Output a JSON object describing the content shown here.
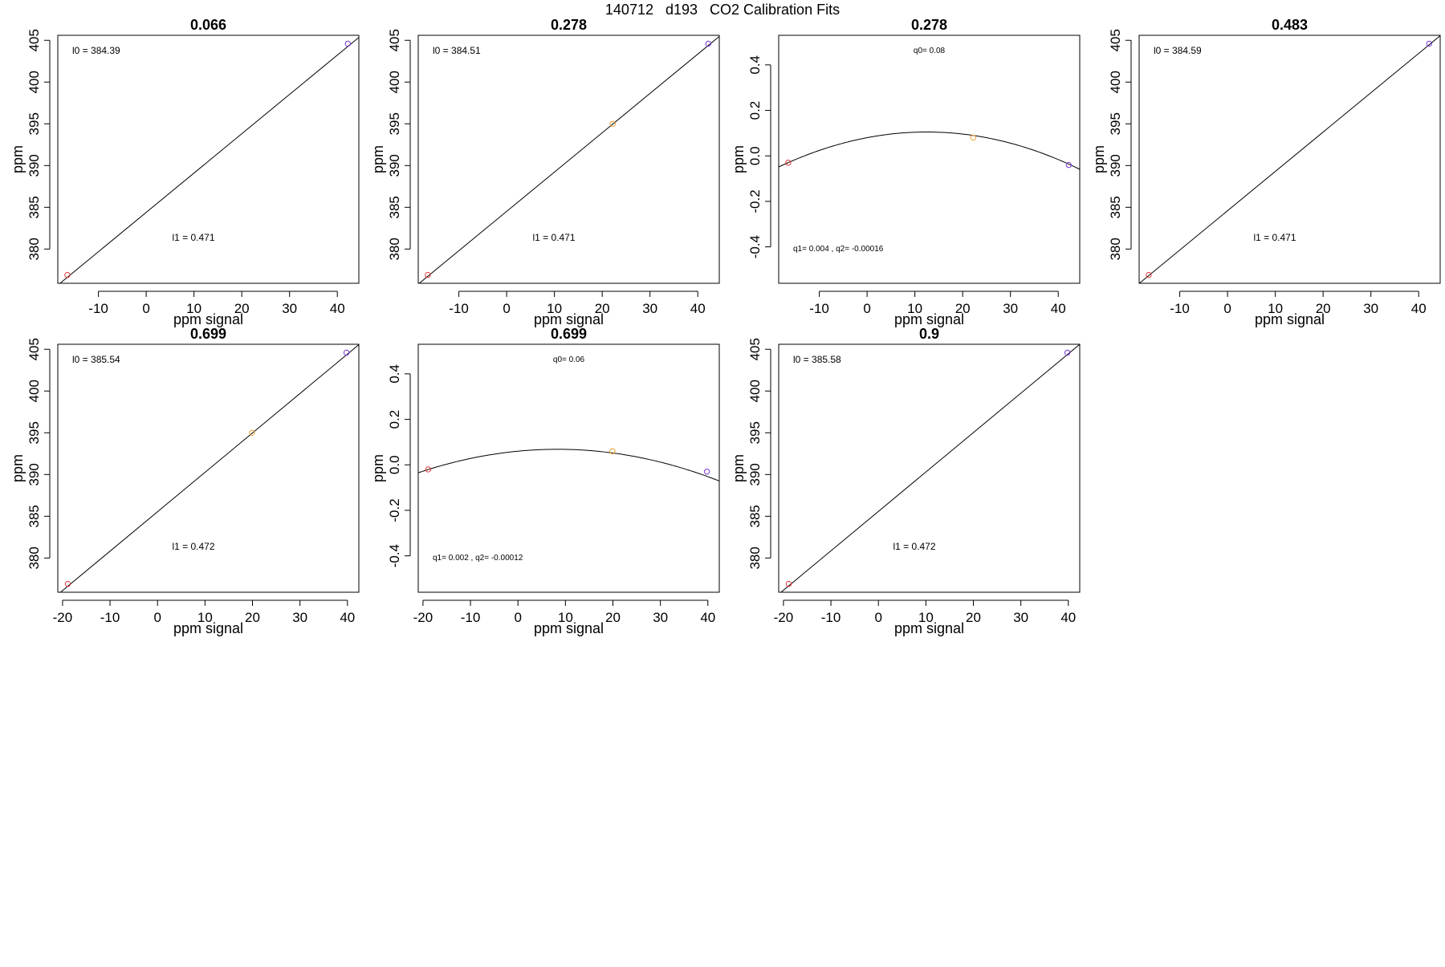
{
  "figure": {
    "title": "140712   d193   CO2 Calibration Fits"
  },
  "chart_data": [
    {
      "type": "scatter",
      "title": "0.066",
      "xlabel": "ppm signal",
      "ylabel": "ppm",
      "xlim": [
        -18.5,
        44.5
      ],
      "ylim": [
        375.9,
        405.6
      ],
      "xticks": [
        -10,
        0,
        10,
        20,
        30,
        40
      ],
      "yticks": [
        380,
        385,
        390,
        395,
        400,
        405
      ],
      "points": [
        {
          "x": -16.5,
          "y": 376.9,
          "color": "#e0383a"
        },
        {
          "x": 42.2,
          "y": 404.6,
          "color": "#7b38d8"
        }
      ],
      "fit_line": {
        "kind": "linear",
        "intercept": 384.39,
        "slope": 0.471
      },
      "annotations": [
        {
          "label": "l0 =  384.39",
          "pos": "top-left"
        },
        {
          "label": "l1 =  0.471",
          "pos": "bottom-center"
        }
      ],
      "grid": false
    },
    {
      "type": "scatter",
      "title": "0.278",
      "xlabel": "ppm signal",
      "ylabel": "ppm",
      "xlim": [
        -18.5,
        44.5
      ],
      "ylim": [
        375.9,
        405.6
      ],
      "xticks": [
        -10,
        0,
        10,
        20,
        30,
        40
      ],
      "yticks": [
        380,
        385,
        390,
        395,
        400,
        405
      ],
      "points": [
        {
          "x": -16.5,
          "y": 376.9,
          "color": "#e0383a"
        },
        {
          "x": 22.2,
          "y": 395.0,
          "color": "#f0a030"
        },
        {
          "x": 42.2,
          "y": 404.6,
          "color": "#7b38d8"
        }
      ],
      "fit_line": {
        "kind": "linear",
        "intercept": 384.51,
        "slope": 0.471
      },
      "annotations": [
        {
          "label": "l0 =  384.51",
          "pos": "top-left"
        },
        {
          "label": "l1 =  0.471",
          "pos": "bottom-center"
        }
      ],
      "grid": false
    },
    {
      "type": "scatter",
      "title": "0.278",
      "xlabel": "ppm signal",
      "ylabel": "ppm",
      "xlim": [
        -18.5,
        44.5
      ],
      "ylim": [
        -0.56,
        0.53
      ],
      "xticks": [
        -10,
        0,
        10,
        20,
        30,
        40
      ],
      "yticks": [
        -0.4,
        -0.2,
        0.0,
        0.2,
        0.4
      ],
      "ytick_labels": [
        "-0.4",
        "-0.2",
        "0.0",
        "0.2",
        "0.4"
      ],
      "points": [
        {
          "x": -16.5,
          "y": -0.03,
          "color": "#e0383a"
        },
        {
          "x": 22.2,
          "y": 0.08,
          "color": "#f0a030"
        },
        {
          "x": 42.2,
          "y": -0.04,
          "color": "#7b38d8"
        }
      ],
      "fit_line": {
        "kind": "quadratic",
        "q0": 0.08,
        "q1": 0.004,
        "q2": -0.00016
      },
      "annotations": [
        {
          "label": "q0= 0.08",
          "pos": "top-center"
        },
        {
          "label": "q1= 0.004 , q2= -0.00016",
          "pos": "bottom-left"
        }
      ],
      "grid": false
    },
    {
      "type": "scatter",
      "title": "0.483",
      "xlabel": "ppm signal",
      "ylabel": "ppm",
      "xlim": [
        -18.5,
        44.5
      ],
      "ylim": [
        375.9,
        405.6
      ],
      "xticks": [
        -10,
        0,
        10,
        20,
        30,
        40
      ],
      "yticks": [
        380,
        385,
        390,
        395,
        400,
        405
      ],
      "points": [
        {
          "x": -16.5,
          "y": 376.9,
          "color": "#e0383a"
        },
        {
          "x": 42.2,
          "y": 404.6,
          "color": "#7b38d8"
        }
      ],
      "fit_line": {
        "kind": "linear",
        "intercept": 384.59,
        "slope": 0.471
      },
      "annotations": [
        {
          "label": "l0 =  384.59",
          "pos": "top-left"
        },
        {
          "label": "l1 =  0.471",
          "pos": "bottom-center"
        }
      ],
      "grid": false
    },
    {
      "type": "scatter",
      "title": "0.699",
      "xlabel": "ppm signal",
      "ylabel": "ppm",
      "xlim": [
        -21.0,
        42.4
      ],
      "ylim": [
        375.9,
        405.6
      ],
      "xticks": [
        -20,
        -10,
        0,
        10,
        20,
        30,
        40
      ],
      "yticks": [
        380,
        385,
        390,
        395,
        400,
        405
      ],
      "points": [
        {
          "x": -18.9,
          "y": 376.9,
          "color": "#e0383a"
        },
        {
          "x": 19.9,
          "y": 395.0,
          "color": "#f0a030"
        },
        {
          "x": 39.8,
          "y": 404.6,
          "color": "#7b38d8"
        }
      ],
      "fit_line": {
        "kind": "linear",
        "intercept": 385.54,
        "slope": 0.472
      },
      "annotations": [
        {
          "label": "l0 =  385.54",
          "pos": "top-left"
        },
        {
          "label": "l1 =  0.472",
          "pos": "bottom-center"
        }
      ],
      "grid": false
    },
    {
      "type": "scatter",
      "title": "0.699",
      "xlabel": "ppm signal",
      "ylabel": "ppm",
      "xlim": [
        -21.0,
        42.4
      ],
      "ylim": [
        -0.56,
        0.53
      ],
      "xticks": [
        -20,
        -10,
        0,
        10,
        20,
        30,
        40
      ],
      "yticks": [
        -0.4,
        -0.2,
        0.0,
        0.2,
        0.4
      ],
      "ytick_labels": [
        "-0.4",
        "-0.2",
        "0.0",
        "0.2",
        "0.4"
      ],
      "points": [
        {
          "x": -18.9,
          "y": -0.02,
          "color": "#e0383a"
        },
        {
          "x": 19.9,
          "y": 0.06,
          "color": "#f0a030"
        },
        {
          "x": 39.8,
          "y": -0.03,
          "color": "#7b38d8"
        }
      ],
      "fit_line": {
        "kind": "quadratic",
        "q0": 0.06,
        "q1": 0.002,
        "q2": -0.00012
      },
      "annotations": [
        {
          "label": "q0= 0.06",
          "pos": "top-center"
        },
        {
          "label": "q1= 0.002 , q2= -0.00012",
          "pos": "bottom-left"
        }
      ],
      "grid": false
    },
    {
      "type": "scatter",
      "title": "0.9",
      "xlabel": "ppm signal",
      "ylabel": "ppm",
      "xlim": [
        -21.0,
        42.4
      ],
      "ylim": [
        375.9,
        405.6
      ],
      "xticks": [
        -20,
        -10,
        0,
        10,
        20,
        30,
        40
      ],
      "yticks": [
        380,
        385,
        390,
        395,
        400,
        405
      ],
      "points": [
        {
          "x": -18.9,
          "y": 376.9,
          "color": "#e0383a"
        },
        {
          "x": 39.8,
          "y": 404.6,
          "color": "#7b38d8"
        }
      ],
      "fit_line": {
        "kind": "linear",
        "intercept": 385.58,
        "slope": 0.472
      },
      "annotations": [
        {
          "label": "l0 =  385.58",
          "pos": "top-left"
        },
        {
          "label": "l1 =  0.472",
          "pos": "bottom-center"
        }
      ],
      "grid": false
    }
  ]
}
